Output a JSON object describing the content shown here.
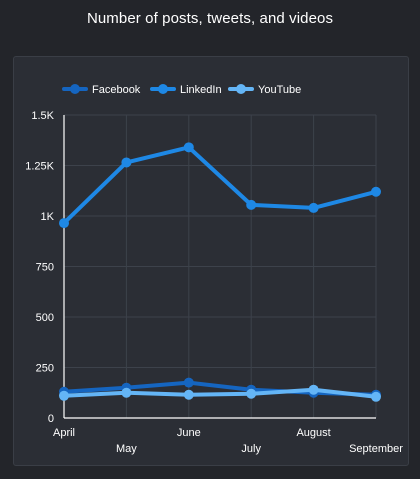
{
  "chart_data": {
    "type": "line",
    "title": "Number of posts, tweets, and videos",
    "categories": [
      "April",
      "May",
      "June",
      "July",
      "August",
      "September"
    ],
    "y_ticks": [
      "0",
      "250",
      "500",
      "750",
      "1K",
      "1.25K",
      "1.5K"
    ],
    "ylim": [
      0,
      1500
    ],
    "grid": true,
    "legend": "top-left",
    "series": [
      {
        "name": "Facebook",
        "color": "#1565c0",
        "values": [
          130,
          150,
          175,
          140,
          125,
          115
        ]
      },
      {
        "name": "LinkedIn",
        "color": "#1e88e5",
        "values": [
          965,
          1265,
          1340,
          1055,
          1040,
          1120
        ]
      },
      {
        "name": "YouTube",
        "color": "#64b5f6",
        "values": [
          110,
          125,
          115,
          120,
          140,
          105
        ]
      }
    ]
  }
}
